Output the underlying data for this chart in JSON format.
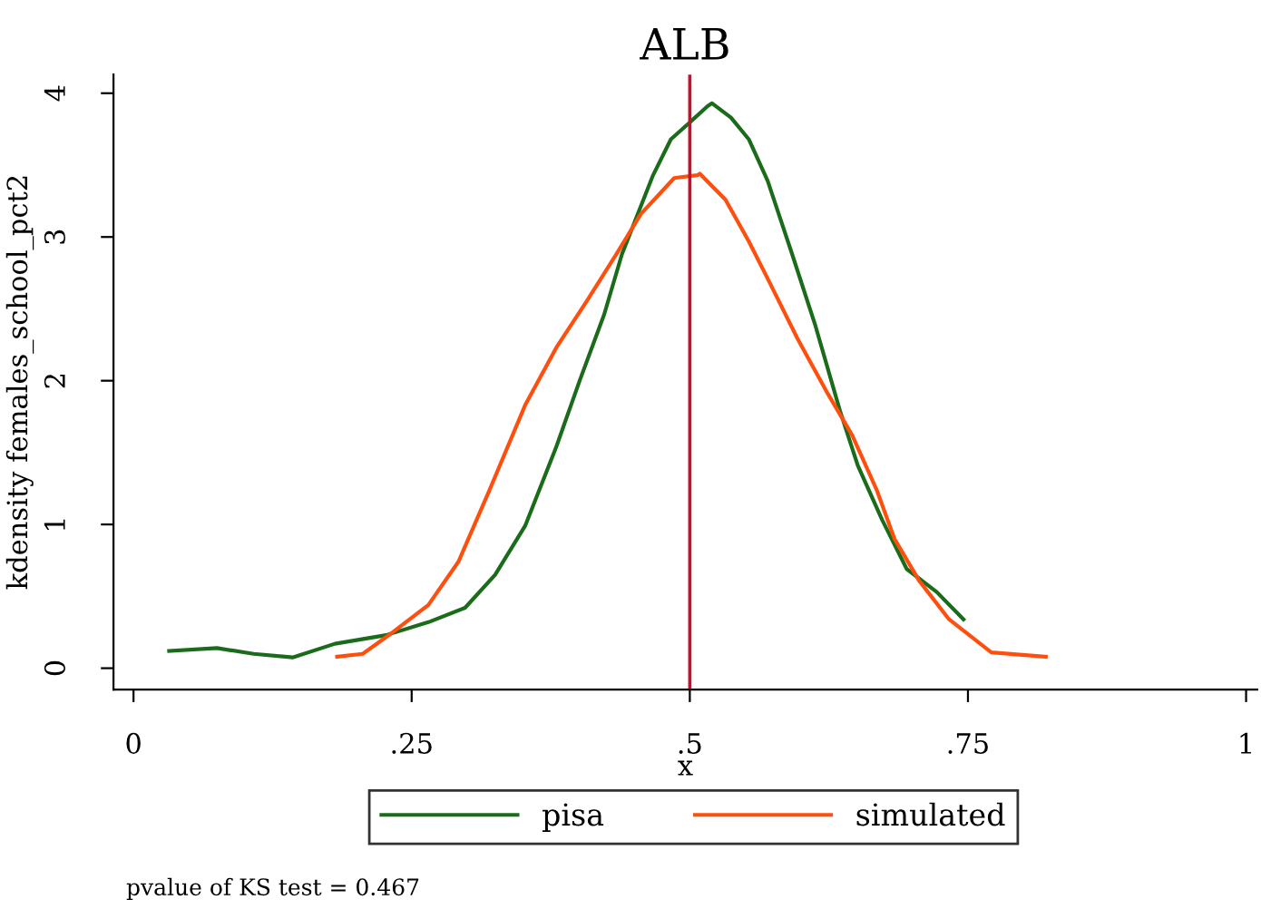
{
  "chart_data": {
    "type": "line",
    "title": "ALB",
    "xlabel": "x",
    "ylabel": "kdensity females_school_pct2",
    "series": [
      {
        "name": "pisa",
        "color": "#1a6b1a",
        "x": [
          0.032,
          0.075,
          0.108,
          0.143,
          0.181,
          0.227,
          0.265,
          0.298,
          0.325,
          0.352,
          0.38,
          0.401,
          0.423,
          0.439,
          0.467,
          0.483,
          0.499,
          0.516,
          0.52,
          0.537,
          0.553,
          0.57,
          0.592,
          0.613,
          0.635,
          0.651,
          0.673,
          0.695,
          0.722,
          0.746
        ],
        "values": [
          0.12,
          0.14,
          0.1,
          0.075,
          0.17,
          0.23,
          0.32,
          0.42,
          0.65,
          0.99,
          1.54,
          2.0,
          2.46,
          2.88,
          3.43,
          3.68,
          3.79,
          3.91,
          3.93,
          3.83,
          3.68,
          3.39,
          2.88,
          2.38,
          1.79,
          1.41,
          1.03,
          0.69,
          0.53,
          0.34
        ]
      },
      {
        "name": "simulated",
        "color": "#ff4f0f",
        "x": [
          0.183,
          0.206,
          0.233,
          0.265,
          0.292,
          0.32,
          0.352,
          0.38,
          0.407,
          0.434,
          0.456,
          0.486,
          0.507,
          0.509,
          0.532,
          0.553,
          0.57,
          0.597,
          0.624,
          0.646,
          0.668,
          0.684,
          0.706,
          0.733,
          0.771,
          0.82
        ],
        "values": [
          0.08,
          0.1,
          0.25,
          0.44,
          0.74,
          1.24,
          1.83,
          2.23,
          2.55,
          2.88,
          3.16,
          3.41,
          3.43,
          3.44,
          3.26,
          2.97,
          2.71,
          2.29,
          1.91,
          1.62,
          1.24,
          0.9,
          0.61,
          0.34,
          0.11,
          0.08
        ]
      }
    ],
    "xlim": [
      -0.018,
      1.01
    ],
    "ylim": [
      -0.148,
      4.13
    ],
    "xticks": [
      {
        "value": 0,
        "label": "0"
      },
      {
        "value": 0.25,
        "label": ".25"
      },
      {
        "value": 0.5,
        "label": ".5"
      },
      {
        "value": 0.75,
        "label": ".75"
      },
      {
        "value": 1,
        "label": "1"
      }
    ],
    "yticks": [
      0,
      1,
      2,
      3,
      4
    ],
    "ref_lines": [
      {
        "axis": "x",
        "value": 0.5,
        "color": "#c8102e"
      }
    ],
    "legend": "bottom",
    "grid": false,
    "marker": "none",
    "line_style": "solid",
    "annotations": [
      "pvalue of KS test = 0.467"
    ]
  }
}
